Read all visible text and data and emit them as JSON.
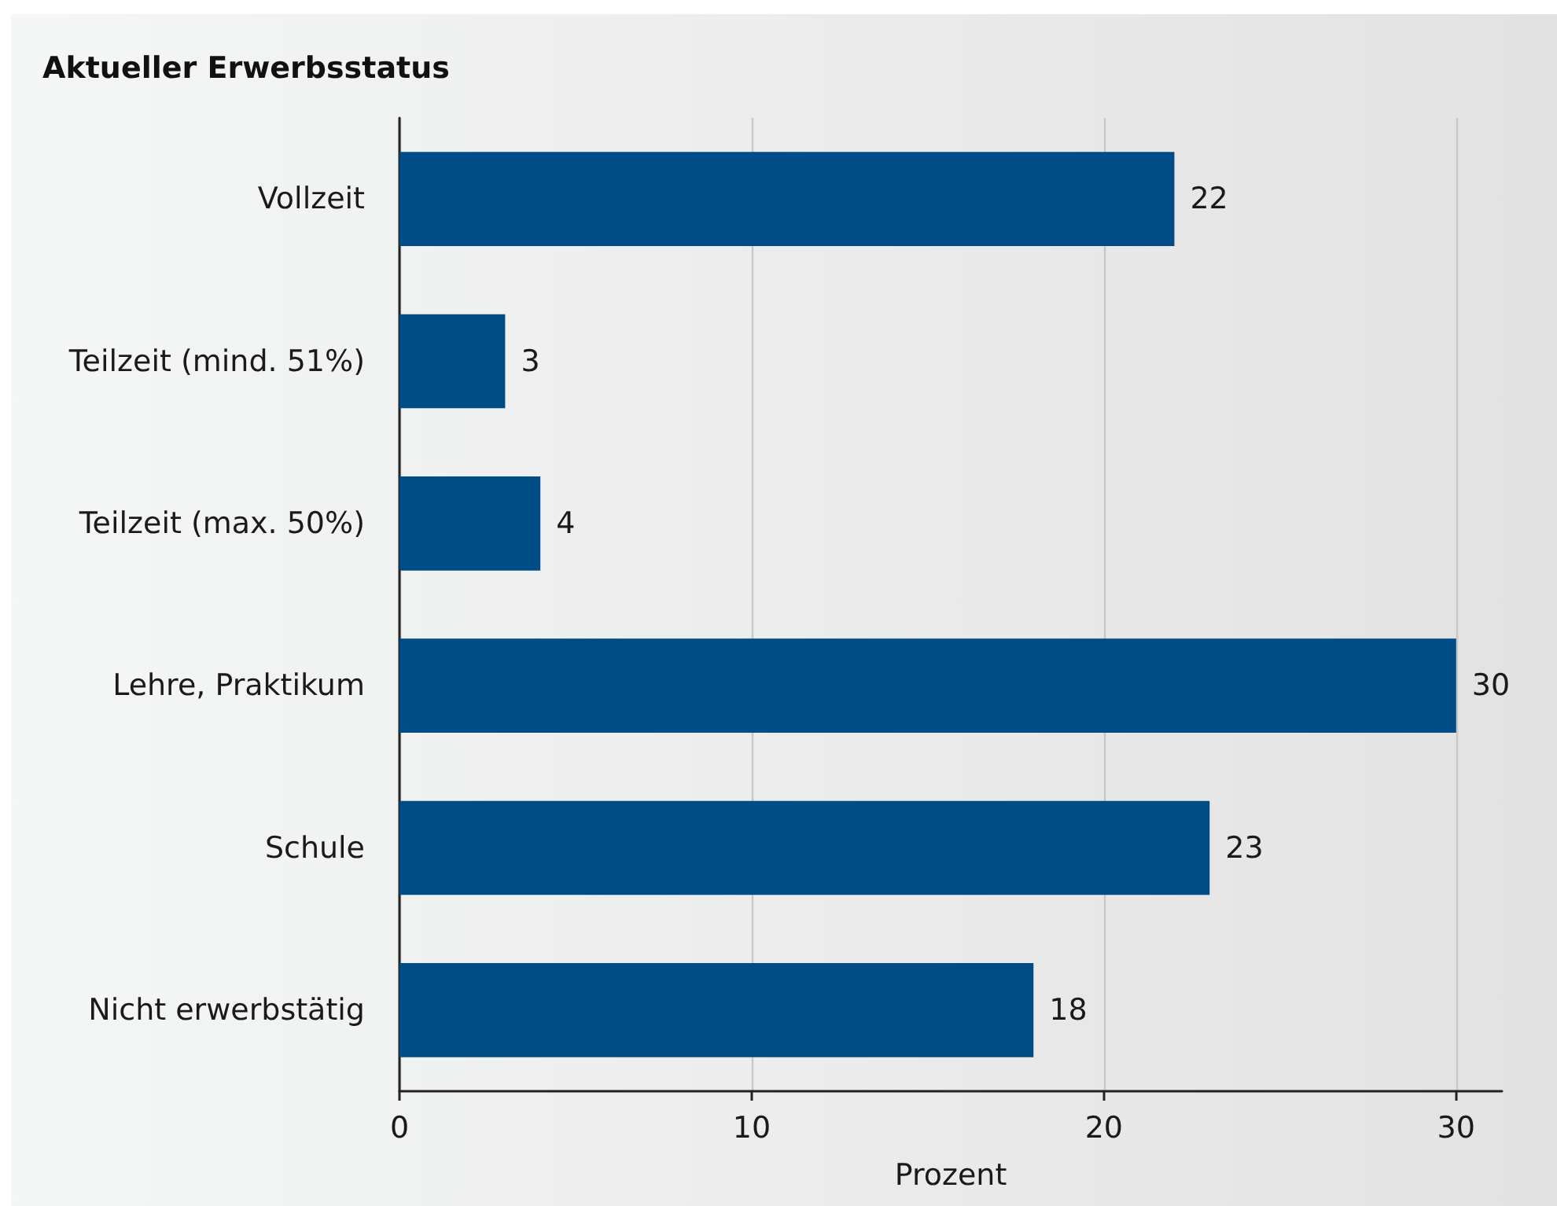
{
  "chart_data": {
    "type": "bar",
    "orientation": "horizontal",
    "title": "Aktueller Erwerbsstatus",
    "xlabel": "Prozent",
    "categories": [
      "Vollzeit",
      "Teilzeit (mind. 51%)",
      "Teilzeit (max. 50%)",
      "Lehre, Praktikum",
      "Schule",
      "Nicht erwerbstätig"
    ],
    "values": [
      22,
      3,
      4,
      30,
      23,
      18
    ],
    "color": "#004c87",
    "xlim": [
      0,
      31.3
    ],
    "xticks": [
      0,
      10,
      20,
      30
    ],
    "grid": "x",
    "data_labels": true
  }
}
